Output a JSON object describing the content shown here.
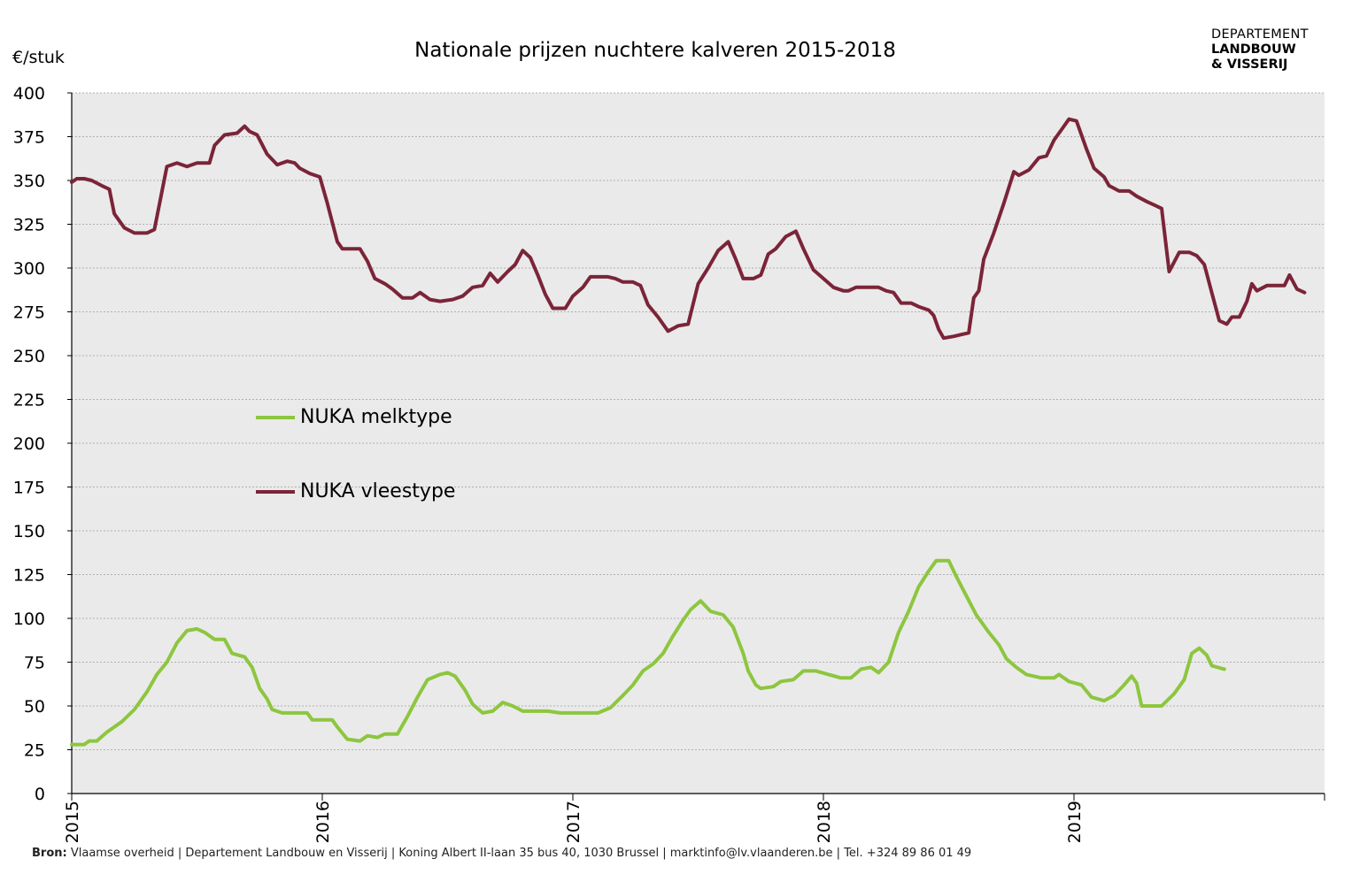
{
  "title": "Nationale prijzen nuchtere kalveren 2015-2018",
  "unit_label": "€/stuk",
  "logo": {
    "line1": "DEPARTEMENT",
    "line2": "LANDBOUW",
    "line3": "& VISSERIJ"
  },
  "source": {
    "label": "Bron:",
    "text": "Vlaamse overheid | Departement Landbouw en Visserij | Koning Albert II-laan 35 bus 40, 1030 Brussel | marktinfo@lv.vlaanderen.be | Tel. +324 89 86 01 49"
  },
  "colors": {
    "melktype": "#8DC63F",
    "vleestype": "#7B2438",
    "plot_bg": "#EAEAEA",
    "grid": "#B0B0B0"
  },
  "chart_data": {
    "type": "line",
    "title": "Nationale prijzen nuchtere kalveren 2015-2018",
    "ylabel": "€/stuk",
    "xlabel": "",
    "ylim": [
      0,
      400
    ],
    "xlim": [
      2015,
      2020.0
    ],
    "yticks": [
      0,
      25,
      50,
      75,
      100,
      125,
      150,
      175,
      200,
      225,
      250,
      275,
      300,
      325,
      350,
      375,
      400
    ],
    "xticks": [
      "2015",
      "2016",
      "2017",
      "2018",
      "2019"
    ],
    "grid": true,
    "legend_position": "inside-left",
    "series": [
      {
        "name": "NUKA melktype",
        "points": [
          [
            2015.0,
            28
          ],
          [
            2015.05,
            28
          ],
          [
            2015.07,
            30
          ],
          [
            2015.1,
            30
          ],
          [
            2015.14,
            35
          ],
          [
            2015.2,
            41
          ],
          [
            2015.25,
            48
          ],
          [
            2015.3,
            58
          ],
          [
            2015.34,
            68
          ],
          [
            2015.38,
            75
          ],
          [
            2015.42,
            86
          ],
          [
            2015.46,
            93
          ],
          [
            2015.5,
            94
          ],
          [
            2015.53,
            92
          ],
          [
            2015.57,
            88
          ],
          [
            2015.61,
            88
          ],
          [
            2015.64,
            80
          ],
          [
            2015.69,
            78
          ],
          [
            2015.72,
            72
          ],
          [
            2015.75,
            60
          ],
          [
            2015.78,
            54
          ],
          [
            2015.8,
            48
          ],
          [
            2015.84,
            46
          ],
          [
            2015.94,
            46
          ],
          [
            2015.96,
            42
          ],
          [
            2016.04,
            42
          ],
          [
            2016.06,
            38
          ],
          [
            2016.1,
            31
          ],
          [
            2016.15,
            30
          ],
          [
            2016.18,
            33
          ],
          [
            2016.22,
            32
          ],
          [
            2016.25,
            34
          ],
          [
            2016.3,
            34
          ],
          [
            2016.34,
            44
          ],
          [
            2016.38,
            55
          ],
          [
            2016.42,
            65
          ],
          [
            2016.47,
            68
          ],
          [
            2016.5,
            69
          ],
          [
            2016.53,
            67
          ],
          [
            2016.57,
            59
          ],
          [
            2016.6,
            51
          ],
          [
            2016.64,
            46
          ],
          [
            2016.68,
            47
          ],
          [
            2016.72,
            52
          ],
          [
            2016.76,
            50
          ],
          [
            2016.8,
            47
          ],
          [
            2016.9,
            47
          ],
          [
            2016.95,
            46
          ],
          [
            2017.05,
            46
          ],
          [
            2017.1,
            46
          ],
          [
            2017.15,
            49
          ],
          [
            2017.2,
            56
          ],
          [
            2017.24,
            62
          ],
          [
            2017.28,
            70
          ],
          [
            2017.32,
            74
          ],
          [
            2017.36,
            80
          ],
          [
            2017.4,
            90
          ],
          [
            2017.44,
            99
          ],
          [
            2017.47,
            105
          ],
          [
            2017.51,
            110
          ],
          [
            2017.55,
            104
          ],
          [
            2017.6,
            102
          ],
          [
            2017.64,
            95
          ],
          [
            2017.68,
            80
          ],
          [
            2017.7,
            70
          ],
          [
            2017.73,
            62
          ],
          [
            2017.75,
            60
          ],
          [
            2017.8,
            61
          ],
          [
            2017.83,
            64
          ],
          [
            2017.88,
            65
          ],
          [
            2017.92,
            70
          ],
          [
            2017.97,
            70
          ],
          [
            2018.02,
            68
          ],
          [
            2018.07,
            66
          ],
          [
            2018.11,
            66
          ],
          [
            2018.15,
            71
          ],
          [
            2018.19,
            72
          ],
          [
            2018.22,
            69
          ],
          [
            2018.26,
            75
          ],
          [
            2018.3,
            92
          ],
          [
            2018.34,
            104
          ],
          [
            2018.38,
            118
          ],
          [
            2018.42,
            127
          ],
          [
            2018.45,
            133
          ],
          [
            2018.5,
            133
          ],
          [
            2018.53,
            124
          ],
          [
            2018.57,
            113
          ],
          [
            2018.61,
            102
          ],
          [
            2018.66,
            92
          ],
          [
            2018.7,
            85
          ],
          [
            2018.73,
            77
          ],
          [
            2018.77,
            72
          ],
          [
            2018.81,
            68
          ],
          [
            2018.87,
            66
          ],
          [
            2018.92,
            66
          ],
          [
            2018.94,
            68
          ],
          [
            2018.98,
            64
          ],
          [
            2019.03,
            62
          ],
          [
            2019.07,
            55
          ],
          [
            2019.12,
            53
          ],
          [
            2019.16,
            56
          ],
          [
            2019.2,
            62
          ],
          [
            2019.23,
            67
          ],
          [
            2019.25,
            63
          ],
          [
            2019.27,
            50
          ],
          [
            2019.35,
            50
          ],
          [
            2019.4,
            57
          ],
          [
            2019.44,
            65
          ],
          [
            2019.47,
            80
          ],
          [
            2019.5,
            83
          ],
          [
            2019.53,
            79
          ],
          [
            2019.55,
            73
          ],
          [
            2019.6,
            71
          ]
        ]
      },
      {
        "name": "NUKA vleestype",
        "points": [
          [
            2015.0,
            349
          ],
          [
            2015.02,
            351
          ],
          [
            2015.05,
            351
          ],
          [
            2015.08,
            350
          ],
          [
            2015.12,
            347
          ],
          [
            2015.15,
            345
          ],
          [
            2015.17,
            331
          ],
          [
            2015.21,
            323
          ],
          [
            2015.25,
            320
          ],
          [
            2015.3,
            320
          ],
          [
            2015.33,
            322
          ],
          [
            2015.38,
            358
          ],
          [
            2015.42,
            360
          ],
          [
            2015.46,
            358
          ],
          [
            2015.5,
            360
          ],
          [
            2015.55,
            360
          ],
          [
            2015.57,
            370
          ],
          [
            2015.61,
            376
          ],
          [
            2015.66,
            377
          ],
          [
            2015.69,
            381
          ],
          [
            2015.71,
            378
          ],
          [
            2015.74,
            376
          ],
          [
            2015.78,
            365
          ],
          [
            2015.82,
            359
          ],
          [
            2015.86,
            361
          ],
          [
            2015.89,
            360
          ],
          [
            2015.91,
            357
          ],
          [
            2015.95,
            354
          ],
          [
            2015.99,
            352
          ],
          [
            2016.02,
            337
          ],
          [
            2016.06,
            315
          ],
          [
            2016.08,
            311
          ],
          [
            2016.15,
            311
          ],
          [
            2016.18,
            304
          ],
          [
            2016.21,
            294
          ],
          [
            2016.25,
            291
          ],
          [
            2016.28,
            288
          ],
          [
            2016.32,
            283
          ],
          [
            2016.36,
            283
          ],
          [
            2016.39,
            286
          ],
          [
            2016.43,
            282
          ],
          [
            2016.47,
            281
          ],
          [
            2016.52,
            282
          ],
          [
            2016.56,
            284
          ],
          [
            2016.6,
            289
          ],
          [
            2016.64,
            290
          ],
          [
            2016.67,
            297
          ],
          [
            2016.7,
            292
          ],
          [
            2016.74,
            298
          ],
          [
            2016.77,
            302
          ],
          [
            2016.8,
            310
          ],
          [
            2016.83,
            306
          ],
          [
            2016.86,
            296
          ],
          [
            2016.89,
            285
          ],
          [
            2016.92,
            277
          ],
          [
            2016.97,
            277
          ],
          [
            2017.0,
            284
          ],
          [
            2017.04,
            289
          ],
          [
            2017.07,
            295
          ],
          [
            2017.14,
            295
          ],
          [
            2017.17,
            294
          ],
          [
            2017.2,
            292
          ],
          [
            2017.24,
            292
          ],
          [
            2017.27,
            290
          ],
          [
            2017.3,
            279
          ],
          [
            2017.34,
            272
          ],
          [
            2017.38,
            264
          ],
          [
            2017.42,
            267
          ],
          [
            2017.46,
            268
          ],
          [
            2017.5,
            291
          ],
          [
            2017.54,
            300
          ],
          [
            2017.58,
            310
          ],
          [
            2017.62,
            315
          ],
          [
            2017.65,
            305
          ],
          [
            2017.68,
            294
          ],
          [
            2017.72,
            294
          ],
          [
            2017.75,
            296
          ],
          [
            2017.78,
            308
          ],
          [
            2017.81,
            311
          ],
          [
            2017.85,
            318
          ],
          [
            2017.89,
            321
          ],
          [
            2017.92,
            311
          ],
          [
            2017.96,
            299
          ],
          [
            2018.0,
            294
          ],
          [
            2018.04,
            289
          ],
          [
            2018.08,
            287
          ],
          [
            2018.1,
            287
          ],
          [
            2018.13,
            289
          ],
          [
            2018.18,
            289
          ],
          [
            2018.22,
            289
          ],
          [
            2018.25,
            287
          ],
          [
            2018.28,
            286
          ],
          [
            2018.31,
            280
          ],
          [
            2018.35,
            280
          ],
          [
            2018.38,
            278
          ],
          [
            2018.42,
            276
          ],
          [
            2018.44,
            273
          ],
          [
            2018.46,
            265
          ],
          [
            2018.48,
            260
          ],
          [
            2018.52,
            261
          ],
          [
            2018.55,
            262
          ],
          [
            2018.58,
            263
          ],
          [
            2018.6,
            283
          ],
          [
            2018.62,
            287
          ],
          [
            2018.64,
            305
          ],
          [
            2018.68,
            320
          ],
          [
            2018.72,
            337
          ],
          [
            2018.76,
            355
          ],
          [
            2018.78,
            353
          ],
          [
            2018.82,
            356
          ],
          [
            2018.86,
            363
          ],
          [
            2018.89,
            364
          ],
          [
            2018.92,
            373
          ],
          [
            2018.96,
            381
          ],
          [
            2018.98,
            385
          ],
          [
            2019.01,
            384
          ],
          [
            2019.05,
            368
          ],
          [
            2019.08,
            357
          ],
          [
            2019.12,
            352
          ],
          [
            2019.14,
            347
          ],
          [
            2019.18,
            344
          ],
          [
            2019.22,
            344
          ],
          [
            2019.25,
            341
          ],
          [
            2019.29,
            338
          ],
          [
            2019.32,
            336
          ],
          [
            2019.35,
            334
          ],
          [
            2019.38,
            298
          ],
          [
            2019.42,
            309
          ],
          [
            2019.46,
            309
          ],
          [
            2019.49,
            307
          ],
          [
            2019.52,
            302
          ],
          [
            2019.55,
            286
          ],
          [
            2019.58,
            270
          ],
          [
            2019.61,
            268
          ],
          [
            2019.63,
            272
          ],
          [
            2019.66,
            272
          ],
          [
            2019.69,
            281
          ],
          [
            2019.71,
            291
          ],
          [
            2019.73,
            287
          ],
          [
            2019.77,
            290
          ],
          [
            2019.8,
            290
          ],
          [
            2019.84,
            290
          ],
          [
            2019.86,
            296
          ],
          [
            2019.89,
            288
          ],
          [
            2019.92,
            286
          ]
        ]
      }
    ]
  },
  "legend": [
    {
      "label": "NUKA melktype"
    },
    {
      "label": "NUKA vleestype"
    }
  ]
}
